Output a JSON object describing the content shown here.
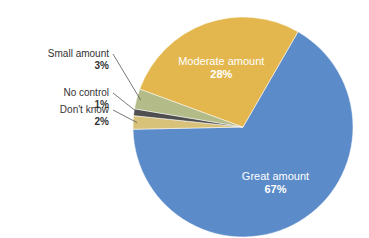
{
  "chart_data": {
    "type": "pie",
    "categories": [
      "Great amount",
      "Don't know",
      "No control",
      "Small amount",
      "Moderate amount"
    ],
    "values": [
      67,
      2,
      1,
      3,
      28
    ],
    "value_labels": [
      "67%",
      "2%",
      "1%",
      "3%",
      "28%"
    ],
    "colors": [
      "#5b8bc9",
      "#d8c27a",
      "#4f4f4f",
      "#b3bb88",
      "#e3b74e"
    ],
    "data_labels": true
  }
}
